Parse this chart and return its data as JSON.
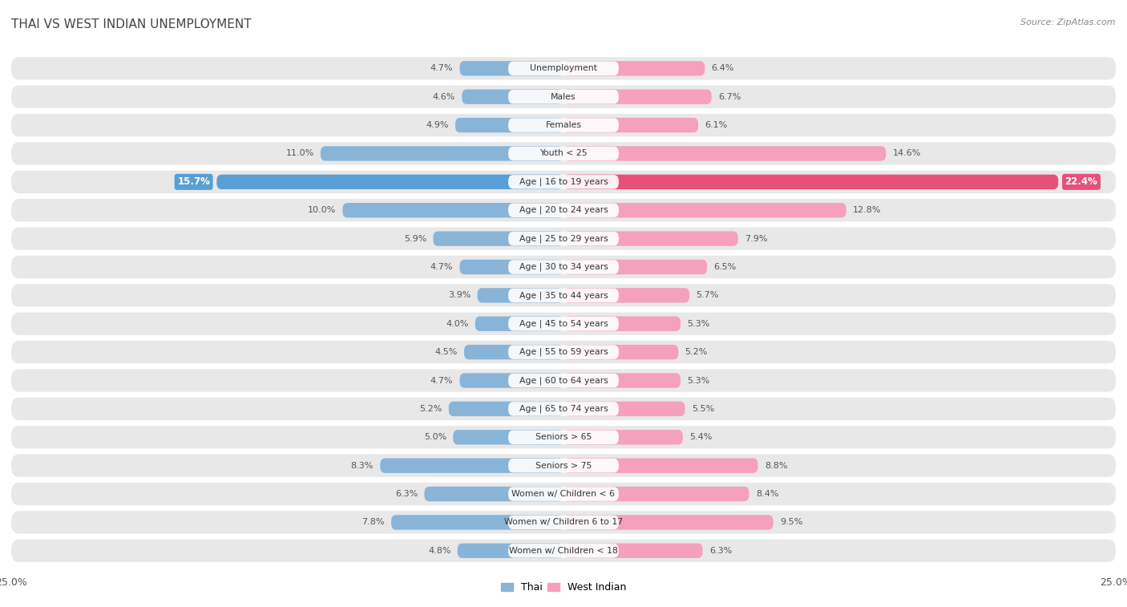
{
  "title": "Thai vs West Indian Unemployment",
  "source_text": "Source: ZipAtlas.com",
  "categories": [
    "Unemployment",
    "Males",
    "Females",
    "Youth < 25",
    "Age | 16 to 19 years",
    "Age | 20 to 24 years",
    "Age | 25 to 29 years",
    "Age | 30 to 34 years",
    "Age | 35 to 44 years",
    "Age | 45 to 54 years",
    "Age | 55 to 59 years",
    "Age | 60 to 64 years",
    "Age | 65 to 74 years",
    "Seniors > 65",
    "Seniors > 75",
    "Women w/ Children < 6",
    "Women w/ Children 6 to 17",
    "Women w/ Children < 18"
  ],
  "thai_values": [
    4.7,
    4.6,
    4.9,
    11.0,
    15.7,
    10.0,
    5.9,
    4.7,
    3.9,
    4.0,
    4.5,
    4.7,
    5.2,
    5.0,
    8.3,
    6.3,
    7.8,
    4.8
  ],
  "west_indian_values": [
    6.4,
    6.7,
    6.1,
    14.6,
    22.4,
    12.8,
    7.9,
    6.5,
    5.7,
    5.3,
    5.2,
    5.3,
    5.5,
    5.4,
    8.8,
    8.4,
    9.5,
    6.3
  ],
  "thai_color": "#88b4d8",
  "west_indian_color": "#f5a0bc",
  "thai_color_highlight": "#5a9fd4",
  "west_indian_color_highlight": "#e8507a",
  "background_color": "#ffffff",
  "row_color": "#e8e8e8",
  "x_max": 25.0,
  "bar_height": 0.52,
  "highlight_idx": 4,
  "legend_thai": "Thai",
  "legend_west_indian": "West Indian"
}
